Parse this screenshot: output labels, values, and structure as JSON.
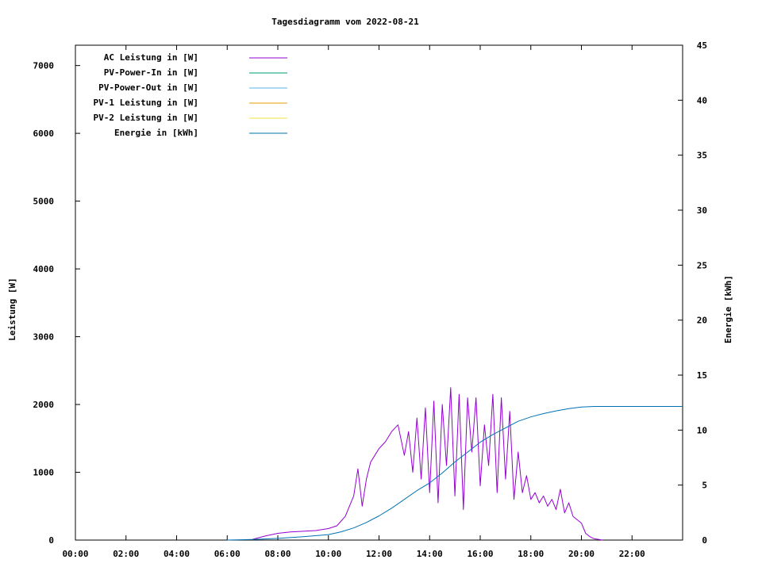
{
  "chart_data": {
    "type": "line",
    "title": "Tagesdiagramm vom 2022-08-21",
    "xlabel": "",
    "ylabel": "Leistung [W]",
    "y2label": "Energie [kWh]",
    "xlim": [
      "00:00",
      "24:00"
    ],
    "ylim": [
      0,
      7300
    ],
    "y2lim": [
      0,
      45
    ],
    "x_ticks": [
      "00:00",
      "02:00",
      "04:00",
      "06:00",
      "08:00",
      "10:00",
      "12:00",
      "14:00",
      "16:00",
      "18:00",
      "20:00",
      "22:00"
    ],
    "y_ticks": [
      0,
      1000,
      2000,
      3000,
      4000,
      5000,
      6000,
      7000
    ],
    "y2_ticks": [
      0,
      5,
      10,
      15,
      20,
      25,
      30,
      35,
      40,
      45
    ],
    "grid": false,
    "legend_position": "top-left",
    "series": [
      {
        "name": "AC Leistung in [W]",
        "color": "#9400d3",
        "axis": "left",
        "x": [
          "07:00",
          "07:30",
          "08:00",
          "08:30",
          "09:00",
          "09:30",
          "10:00",
          "10:20",
          "10:40",
          "11:00",
          "11:10",
          "11:20",
          "11:30",
          "11:40",
          "11:50",
          "12:00",
          "12:15",
          "12:30",
          "12:45",
          "13:00",
          "13:10",
          "13:20",
          "13:30",
          "13:40",
          "13:50",
          "14:00",
          "14:10",
          "14:20",
          "14:30",
          "14:40",
          "14:50",
          "15:00",
          "15:10",
          "15:20",
          "15:30",
          "15:40",
          "15:50",
          "16:00",
          "16:10",
          "16:20",
          "16:30",
          "16:40",
          "16:50",
          "17:00",
          "17:10",
          "17:20",
          "17:30",
          "17:40",
          "17:50",
          "18:00",
          "18:10",
          "18:20",
          "18:30",
          "18:40",
          "18:50",
          "19:00",
          "19:10",
          "19:20",
          "19:30",
          "19:40",
          "19:50",
          "20:00",
          "20:10",
          "20:20",
          "20:30",
          "20:40",
          "20:50"
        ],
        "values": [
          10,
          60,
          100,
          120,
          130,
          140,
          170,
          210,
          350,
          650,
          1050,
          500,
          900,
          1150,
          1250,
          1350,
          1450,
          1600,
          1700,
          1250,
          1600,
          1000,
          1800,
          900,
          1950,
          700,
          2050,
          550,
          2000,
          1100,
          2250,
          650,
          2150,
          450,
          2100,
          1300,
          2100,
          800,
          1700,
          1100,
          2150,
          700,
          2100,
          900,
          1900,
          600,
          1300,
          700,
          950,
          600,
          700,
          550,
          650,
          500,
          600,
          450,
          750,
          400,
          550,
          350,
          300,
          250,
          100,
          50,
          20,
          10,
          0
        ]
      },
      {
        "name": "PV-Power-In in [W]",
        "color": "#009e73",
        "axis": "left",
        "x": [],
        "values": []
      },
      {
        "name": "PV-Power-Out in [W]",
        "color": "#56b4e9",
        "axis": "left",
        "x": [],
        "values": []
      },
      {
        "name": "PV-1 Leistung in [W]",
        "color": "#e69f00",
        "axis": "left",
        "x": [],
        "values": []
      },
      {
        "name": "PV-2 Leistung in [W]",
        "color": "#f0e442",
        "axis": "left",
        "x": [],
        "values": []
      },
      {
        "name": "Energie in [kWh]",
        "color": "#0072b2",
        "axis": "right",
        "x": [
          "06:00",
          "07:00",
          "08:00",
          "09:00",
          "10:00",
          "10:30",
          "11:00",
          "11:30",
          "12:00",
          "12:30",
          "13:00",
          "13:30",
          "14:00",
          "14:30",
          "15:00",
          "15:30",
          "16:00",
          "16:30",
          "17:00",
          "17:30",
          "18:00",
          "18:30",
          "19:00",
          "19:30",
          "20:00",
          "20:30",
          "21:00",
          "22:00",
          "24:00"
        ],
        "values": [
          0,
          0.05,
          0.15,
          0.3,
          0.5,
          0.75,
          1.1,
          1.6,
          2.2,
          2.9,
          3.7,
          4.5,
          5.2,
          6.1,
          7.1,
          8.0,
          8.9,
          9.6,
          10.2,
          10.8,
          11.2,
          11.5,
          11.75,
          11.95,
          12.1,
          12.15,
          12.15,
          12.15,
          12.15
        ]
      }
    ]
  }
}
